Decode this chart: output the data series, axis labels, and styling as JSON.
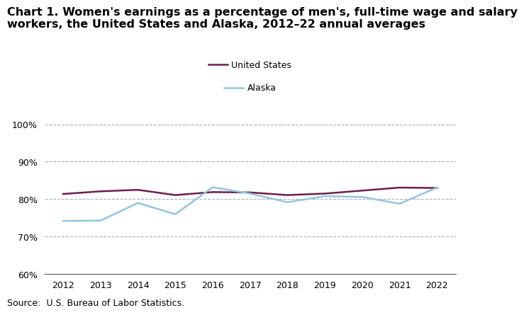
{
  "title_line1": "Chart 1. Women's earnings as a percentage of men's, full-time wage and salary",
  "title_line2": "workers, the United States and Alaska, 2012–22 annual averages",
  "years": [
    2012,
    2013,
    2014,
    2015,
    2016,
    2017,
    2018,
    2019,
    2020,
    2021,
    2022
  ],
  "us_values": [
    81.4,
    82.1,
    82.5,
    81.1,
    81.9,
    81.8,
    81.1,
    81.5,
    82.3,
    83.1,
    83.0
  ],
  "alaska_values": [
    74.2,
    74.3,
    79.0,
    76.0,
    83.2,
    81.5,
    79.2,
    80.8,
    80.6,
    78.8,
    83.1
  ],
  "us_color": "#6d1f47",
  "alaska_color": "#92c5de",
  "ylim_min": 60,
  "ylim_max": 101,
  "yticks": [
    60,
    70,
    80,
    90,
    100
  ],
  "ytick_labels": [
    "60%",
    "70%",
    "80%",
    "90%",
    "100%"
  ],
  "xlim_min": 2011.5,
  "xlim_max": 2022.5,
  "source_text": "Source:  U.S. Bureau of Labor Statistics.",
  "legend_label_us": "United States",
  "legend_label_ak": "Alaska",
  "grid_color": "#b0b0b0",
  "line_width": 1.8,
  "title_fontsize": 11.5,
  "tick_fontsize": 9,
  "legend_fontsize": 9,
  "source_fontsize": 9
}
